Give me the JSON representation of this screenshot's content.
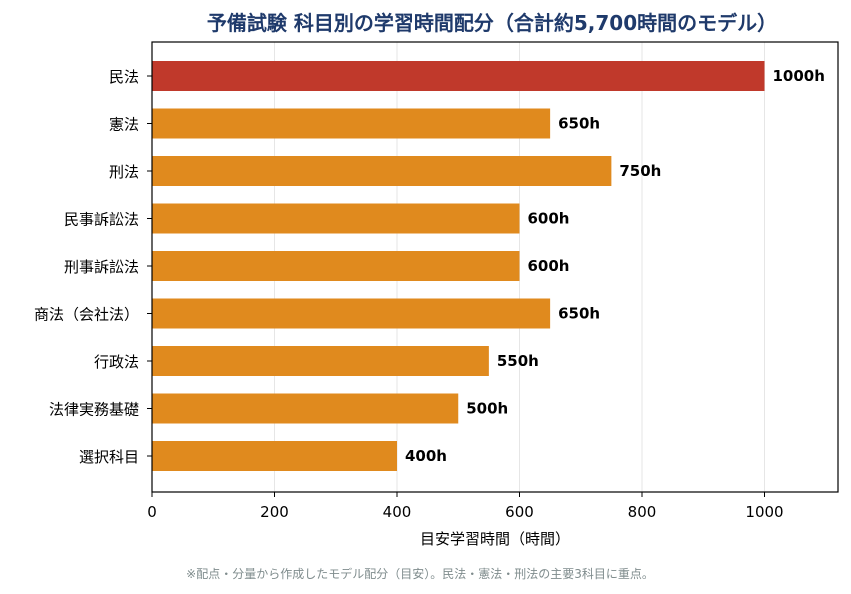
{
  "colors": {
    "title": "#1f3a6b",
    "highlight_bar": "#c0392b",
    "bar": "#e08a1e",
    "grid": "#e6e6e6",
    "note": "#7f8c8d"
  },
  "chart_data": {
    "type": "bar",
    "orientation": "horizontal",
    "title_parts": [
      "予備試験 科目別の学習時間配分（合計約",
      "5,700",
      "時間のモデル）"
    ],
    "xlabel": "目安学習時間（時間）",
    "ylabel": "",
    "categories": [
      "民法",
      "憲法",
      "刑法",
      "民事訴訟法",
      "刑事訴訟法",
      "商法（会社法）",
      "行政法",
      "法律実務基礎",
      "選択科目"
    ],
    "values": [
      1000,
      650,
      750,
      600,
      600,
      650,
      550,
      500,
      400
    ],
    "data_labels": [
      "1000h",
      "650h",
      "750h",
      "600h",
      "600h",
      "650h",
      "550h",
      "500h",
      "400h"
    ],
    "highlighted_category": "民法",
    "xlim": [
      0,
      1120
    ],
    "xticks": [
      0,
      200,
      400,
      600,
      800,
      1000
    ],
    "xtick_labels": [
      "0",
      "200",
      "400",
      "600",
      "800",
      "1000"
    ],
    "grid": "vertical",
    "note": "※配点・分量から作成したモデル配分（目安）。民法・憲法・刑法の主要3科目に重点。"
  }
}
